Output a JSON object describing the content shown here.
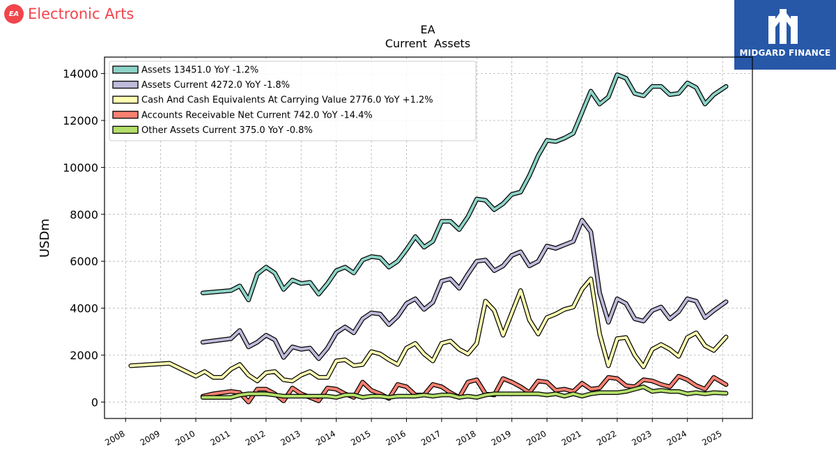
{
  "brand": {
    "company_name": "Electronic Arts",
    "logo_text": "EA"
  },
  "badge": {
    "text": "MIDGARD FINANCE"
  },
  "chart_data": {
    "type": "line",
    "title": "EA",
    "subtitle": "Current  Assets",
    "ylabel": "USDm",
    "xlabel": "",
    "xlim": [
      2007.4,
      2025.85
    ],
    "ylim": [
      -700,
      14700
    ],
    "grid": true,
    "legend_position": "top-left",
    "x_ticks": [
      2008,
      2009,
      2010,
      2011,
      2012,
      2013,
      2014,
      2015,
      2016,
      2017,
      2018,
      2019,
      2020,
      2021,
      2022,
      2023,
      2024,
      2025
    ],
    "x_tick_labels": [
      "2008",
      "2009",
      "2010",
      "2011",
      "2012",
      "2013",
      "2014",
      "2015",
      "2016",
      "2017",
      "2018",
      "2019",
      "2020",
      "2021",
      "2022",
      "2023",
      "2024",
      "2025"
    ],
    "y_ticks": [
      0,
      2000,
      4000,
      6000,
      8000,
      10000,
      12000,
      14000
    ],
    "y_tick_labels": [
      "0",
      "2000",
      "4000",
      "6000",
      "8000",
      "10000",
      "12000",
      "14000"
    ],
    "series": [
      {
        "name": "Assets",
        "legend_label": "Assets  13451.0 YoY -1.2%",
        "color": "#8dd3c7",
        "x": [
          2010.2,
          2011.0,
          2011.25,
          2011.5,
          2011.75,
          2012.0,
          2012.25,
          2012.5,
          2012.75,
          2013.0,
          2013.25,
          2013.5,
          2013.75,
          2014.0,
          2014.25,
          2014.5,
          2014.75,
          2015.0,
          2015.25,
          2015.5,
          2015.75,
          2016.0,
          2016.25,
          2016.5,
          2016.75,
          2017.0,
          2017.25,
          2017.5,
          2017.75,
          2018.0,
          2018.25,
          2018.5,
          2018.75,
          2019.0,
          2019.25,
          2019.5,
          2019.75,
          2020.0,
          2020.25,
          2020.5,
          2020.75,
          2021.0,
          2021.25,
          2021.5,
          2021.75,
          2022.0,
          2022.25,
          2022.5,
          2022.75,
          2023.0,
          2023.25,
          2023.5,
          2023.75,
          2024.0,
          2024.25,
          2024.5,
          2024.75,
          2025.1
        ],
        "y": [
          4650,
          4750,
          4950,
          4350,
          5450,
          5750,
          5500,
          4800,
          5200,
          5050,
          5100,
          4600,
          5050,
          5600,
          5750,
          5500,
          6050,
          6200,
          6150,
          5750,
          6000,
          6500,
          7050,
          6600,
          6850,
          7700,
          7700,
          7350,
          7900,
          8650,
          8600,
          8200,
          8450,
          8850,
          8950,
          9650,
          10500,
          11150,
          11100,
          11250,
          11450,
          12350,
          13250,
          12700,
          13000,
          13950,
          13800,
          13150,
          13050,
          13450,
          13450,
          13100,
          13150,
          13600,
          13400,
          12700,
          13100,
          13451
        ]
      },
      {
        "name": "Assets Current",
        "legend_label": "Assets Current  4272.0 YoY -1.8%",
        "color": "#bebada",
        "x": [
          2010.2,
          2011.0,
          2011.25,
          2011.5,
          2011.75,
          2012.0,
          2012.25,
          2012.5,
          2012.75,
          2013.0,
          2013.25,
          2013.5,
          2013.75,
          2014.0,
          2014.25,
          2014.5,
          2014.75,
          2015.0,
          2015.25,
          2015.5,
          2015.75,
          2016.0,
          2016.25,
          2016.5,
          2016.75,
          2017.0,
          2017.25,
          2017.5,
          2017.75,
          2018.0,
          2018.25,
          2018.5,
          2018.75,
          2019.0,
          2019.25,
          2019.5,
          2019.75,
          2020.0,
          2020.25,
          2020.5,
          2020.75,
          2021.0,
          2021.25,
          2021.5,
          2021.75,
          2022.0,
          2022.25,
          2022.5,
          2022.75,
          2023.0,
          2023.25,
          2023.5,
          2023.75,
          2024.0,
          2024.25,
          2024.5,
          2024.75,
          2025.1
        ],
        "y": [
          2550,
          2700,
          3050,
          2350,
          2550,
          2850,
          2650,
          1900,
          2350,
          2250,
          2300,
          1850,
          2300,
          2950,
          3200,
          2950,
          3550,
          3800,
          3750,
          3300,
          3650,
          4200,
          4400,
          3950,
          4250,
          5150,
          5250,
          4850,
          5450,
          6000,
          6050,
          5600,
          5800,
          6250,
          6400,
          5800,
          6000,
          6650,
          6550,
          6700,
          6850,
          7750,
          7250,
          4650,
          3400,
          4400,
          4200,
          3550,
          3450,
          3900,
          4050,
          3550,
          3850,
          4400,
          4300,
          3600,
          3900,
          4272
        ]
      },
      {
        "name": "Cash And Cash Equivalents At Carrying Value",
        "legend_label": "Cash And Cash Equivalents At Carrying Value  2776.0 YoY +1.2%",
        "color": "#ffffb3",
        "x": [
          2008.15,
          2009.25,
          2010.0,
          2010.25,
          2010.5,
          2010.75,
          2011.0,
          2011.25,
          2011.5,
          2011.75,
          2012.0,
          2012.25,
          2012.5,
          2012.75,
          2013.0,
          2013.25,
          2013.5,
          2013.75,
          2014.0,
          2014.25,
          2014.5,
          2014.75,
          2015.0,
          2015.25,
          2015.5,
          2015.75,
          2016.0,
          2016.25,
          2016.5,
          2016.75,
          2017.0,
          2017.25,
          2017.5,
          2017.75,
          2018.0,
          2018.25,
          2018.5,
          2018.75,
          2019.0,
          2019.25,
          2019.5,
          2019.75,
          2020.0,
          2020.25,
          2020.5,
          2020.75,
          2021.0,
          2021.25,
          2021.5,
          2021.75,
          2022.0,
          2022.25,
          2022.5,
          2022.75,
          2023.0,
          2023.25,
          2023.5,
          2023.75,
          2024.0,
          2024.25,
          2024.5,
          2024.75,
          2025.1
        ],
        "y": [
          1550,
          1650,
          1100,
          1300,
          1050,
          1050,
          1400,
          1600,
          1150,
          900,
          1250,
          1300,
          950,
          900,
          1150,
          1300,
          1050,
          1050,
          1750,
          1800,
          1550,
          1600,
          2150,
          2050,
          1800,
          1600,
          2300,
          2500,
          2050,
          1750,
          2500,
          2600,
          2250,
          2050,
          2500,
          4300,
          3900,
          2850,
          3800,
          4750,
          3500,
          2900,
          3600,
          3750,
          3950,
          4050,
          4800,
          5250,
          2900,
          1550,
          2700,
          2750,
          2000,
          1500,
          2250,
          2450,
          2250,
          1950,
          2750,
          2950,
          2400,
          2200,
          2776
        ]
      },
      {
        "name": "Accounts Receivable Net Current",
        "legend_label": "Accounts Receivable Net Current  742.0 YoY -14.4%",
        "color": "#fb8072",
        "x": [
          2010.2,
          2010.5,
          2010.75,
          2011.0,
          2011.25,
          2011.5,
          2011.75,
          2012.0,
          2012.25,
          2012.5,
          2012.75,
          2013.0,
          2013.25,
          2013.5,
          2013.75,
          2014.0,
          2014.25,
          2014.5,
          2014.75,
          2015.0,
          2015.25,
          2015.5,
          2015.75,
          2016.0,
          2016.25,
          2016.5,
          2016.75,
          2017.0,
          2017.25,
          2017.5,
          2017.75,
          2018.0,
          2018.25,
          2018.5,
          2018.75,
          2019.0,
          2019.25,
          2019.5,
          2019.75,
          2020.0,
          2020.25,
          2020.5,
          2020.75,
          2021.0,
          2021.25,
          2021.5,
          2021.75,
          2022.0,
          2022.25,
          2022.5,
          2022.75,
          2023.0,
          2023.25,
          2023.5,
          2023.75,
          2024.0,
          2024.25,
          2024.5,
          2024.75,
          2025.1
        ],
        "y": [
          250,
          350,
          400,
          450,
          400,
          0,
          550,
          550,
          350,
          50,
          600,
          350,
          200,
          50,
          600,
          550,
          350,
          200,
          850,
          500,
          350,
          150,
          750,
          650,
          300,
          300,
          750,
          650,
          400,
          200,
          850,
          950,
          350,
          300,
          1000,
          850,
          650,
          400,
          900,
          850,
          500,
          550,
          450,
          800,
          550,
          600,
          1050,
          1000,
          700,
          650,
          950,
          900,
          750,
          650,
          1100,
          950,
          700,
          550,
          1050,
          742
        ]
      },
      {
        "name": "Other Assets Current",
        "legend_label": "Other Assets Current  375.0 YoY -0.8%",
        "color": "#b3de69",
        "x": [
          2010.2,
          2010.5,
          2010.75,
          2011.0,
          2011.25,
          2011.5,
          2011.75,
          2012.0,
          2012.25,
          2012.5,
          2012.75,
          2013.0,
          2013.25,
          2013.5,
          2013.75,
          2014.0,
          2014.25,
          2014.5,
          2014.75,
          2015.0,
          2015.25,
          2015.5,
          2015.75,
          2016.0,
          2016.25,
          2016.5,
          2016.75,
          2017.0,
          2017.25,
          2017.5,
          2017.75,
          2018.0,
          2018.25,
          2018.5,
          2018.75,
          2019.0,
          2019.25,
          2019.5,
          2019.75,
          2020.0,
          2020.25,
          2020.5,
          2020.75,
          2021.0,
          2021.25,
          2021.5,
          2021.75,
          2022.0,
          2022.25,
          2022.5,
          2022.75,
          2023.0,
          2023.25,
          2023.5,
          2023.75,
          2024.0,
          2024.25,
          2024.5,
          2024.75,
          2025.1
        ],
        "y": [
          200,
          200,
          200,
          200,
          300,
          350,
          350,
          350,
          300,
          250,
          250,
          250,
          250,
          250,
          250,
          200,
          300,
          300,
          200,
          250,
          250,
          200,
          250,
          250,
          250,
          300,
          250,
          300,
          300,
          200,
          250,
          200,
          300,
          350,
          350,
          350,
          350,
          350,
          350,
          300,
          350,
          250,
          350,
          250,
          350,
          400,
          400,
          400,
          450,
          550,
          650,
          450,
          500,
          450,
          450,
          350,
          400,
          350,
          400,
          375
        ]
      }
    ]
  }
}
